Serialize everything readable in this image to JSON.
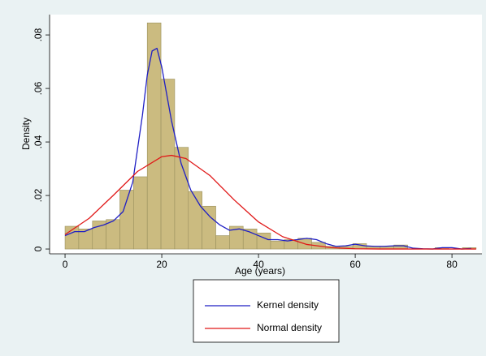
{
  "chart_data": {
    "type": "histogram",
    "x_label": "Age (years)",
    "y_label": "Density",
    "bins": [
      0,
      2.833,
      5.667,
      8.5,
      11.333,
      14.167,
      17,
      19.833,
      22.667,
      25.5,
      28.333,
      31.167,
      34,
      36.833,
      39.667,
      42.5,
      45.333,
      48.167,
      51,
      53.833,
      56.667,
      59.5,
      62.333,
      65.167,
      68,
      70.833,
      73.667,
      76.5,
      79.333,
      82.167,
      85
    ],
    "values": [
      0.0085,
      0.0075,
      0.0105,
      0.011,
      0.022,
      0.027,
      0.0845,
      0.0635,
      0.038,
      0.0215,
      0.016,
      0.005,
      0.0085,
      0.0075,
      0.006,
      0.003,
      0.0035,
      0.004,
      0.0025,
      0.001,
      0.001,
      0.002,
      0.001,
      0.001,
      0.0015,
      0,
      0,
      0.0005,
      0,
      0.0005
    ],
    "bar_color": "#cbbb80",
    "bar_edge_color": "#9a915e",
    "series": [
      {
        "name": "Kernel density",
        "color": "#1f1fc4",
        "x": [
          0,
          2,
          4,
          6,
          8,
          10,
          12,
          14,
          16,
          17,
          18,
          19,
          20,
          21,
          22,
          23,
          24,
          26,
          28,
          30,
          32,
          34,
          36,
          38,
          40,
          42,
          44,
          46,
          48,
          50,
          52,
          54,
          56,
          58,
          60,
          62,
          64,
          66,
          68,
          70,
          72,
          74,
          76,
          78,
          80,
          82,
          84
        ],
        "values": [
          0.005,
          0.0065,
          0.0065,
          0.008,
          0.009,
          0.0105,
          0.014,
          0.025,
          0.05,
          0.065,
          0.074,
          0.075,
          0.068,
          0.058,
          0.048,
          0.04,
          0.032,
          0.022,
          0.016,
          0.012,
          0.009,
          0.007,
          0.0075,
          0.0065,
          0.005,
          0.0035,
          0.0035,
          0.003,
          0.0035,
          0.004,
          0.0035,
          0.002,
          0.001,
          0.0012,
          0.0018,
          0.0012,
          0.001,
          0.001,
          0.0012,
          0.0012,
          0.0003,
          0.0001,
          0,
          0.0005,
          0.0005,
          0,
          0.0002
        ]
      },
      {
        "name": "Normal density",
        "color": "#e01818",
        "x": [
          0,
          5,
          10,
          15,
          20,
          22,
          25,
          30,
          35,
          40,
          45,
          50,
          55,
          60,
          65,
          70,
          75,
          80,
          85
        ],
        "values": [
          0.0054,
          0.0115,
          0.0201,
          0.029,
          0.0345,
          0.035,
          0.0338,
          0.0274,
          0.0183,
          0.0101,
          0.0046,
          0.0017,
          0.0005,
          0.0001,
          0,
          0,
          0,
          0,
          0
        ]
      }
    ],
    "xlim": [
      -3.2,
      86.2
    ],
    "ylim": [
      -0.0018,
      0.0876
    ],
    "xticks": [
      0,
      20,
      40,
      60,
      80
    ],
    "yticks": [
      0,
      {
        "value": 0.02,
        "label": ".02"
      },
      {
        "value": 0.04,
        "label": ".04"
      },
      {
        "value": 0.06,
        "label": ".06"
      },
      {
        "value": 0.08,
        "label": ".08"
      }
    ],
    "legend": "bottom"
  }
}
